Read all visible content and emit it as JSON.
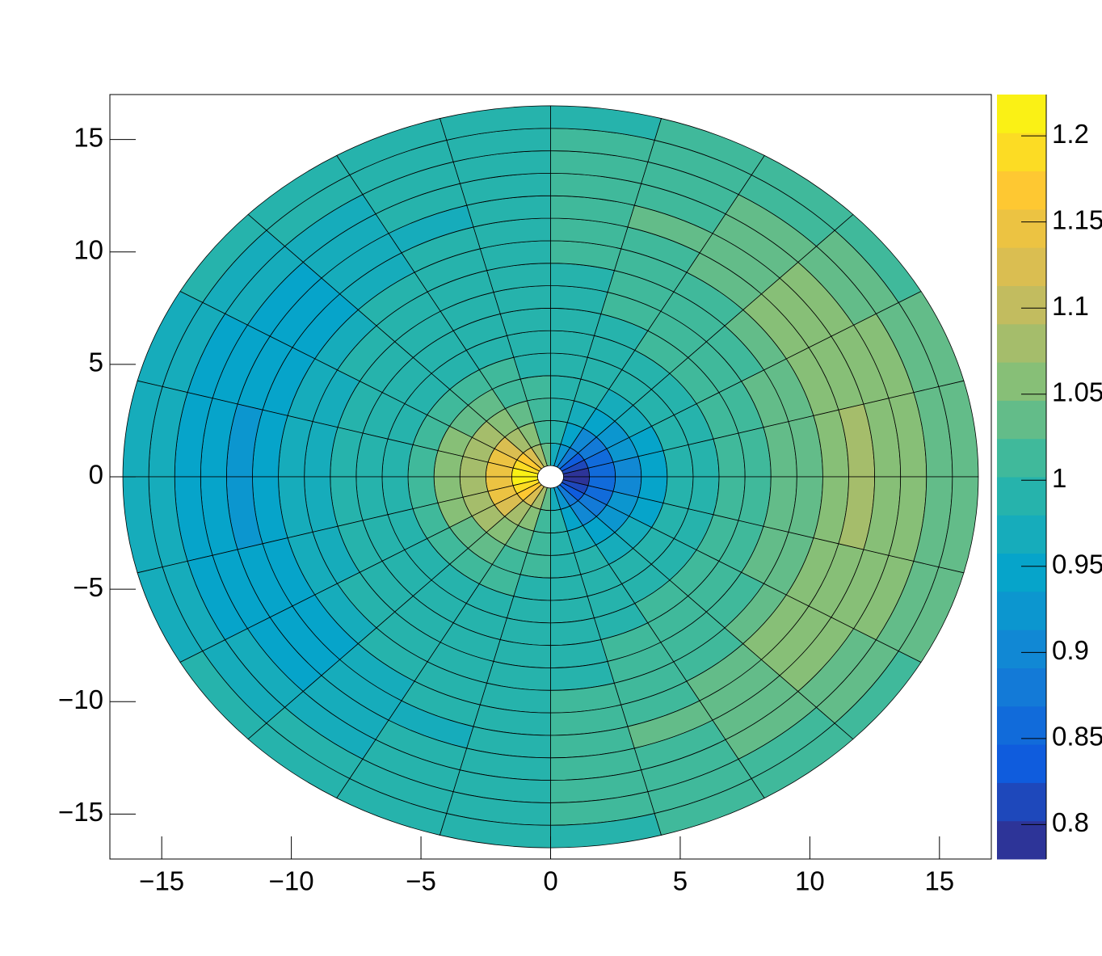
{
  "chart_data": {
    "type": "polar_heatmap",
    "r_edges": [
      0.5,
      1.5,
      2.5,
      3.5,
      4.5,
      5.5,
      6.5,
      7.5,
      8.5,
      9.5,
      10.5,
      11.5,
      12.5,
      13.5,
      14.5,
      15.5,
      16.5
    ],
    "theta_edges": [
      0,
      15,
      30,
      45,
      60,
      75,
      90,
      105,
      120,
      135,
      150,
      165,
      180,
      195,
      210,
      225,
      240,
      255,
      270,
      285,
      300,
      315,
      330,
      345,
      360
    ],
    "values": [
      [
        0.79,
        0.81,
        0.83,
        0.87,
        0.92,
        0.97,
        1.03,
        1.08,
        1.13,
        1.17,
        1.19,
        1.21,
        1.21,
        1.19,
        1.17,
        1.13,
        1.08,
        1.03,
        0.97,
        0.92,
        0.87,
        0.83,
        0.81,
        0.79
      ],
      [
        0.85,
        0.86,
        0.88,
        0.91,
        0.94,
        0.98,
        1.02,
        1.06,
        1.09,
        1.12,
        1.14,
        1.15,
        1.15,
        1.14,
        1.12,
        1.09,
        1.06,
        1.02,
        0.98,
        0.94,
        0.91,
        0.88,
        0.86,
        0.85
      ],
      [
        0.91,
        0.92,
        0.93,
        0.95,
        0.97,
        0.99,
        1.01,
        1.03,
        1.05,
        1.07,
        1.08,
        1.09,
        1.09,
        1.08,
        1.07,
        1.05,
        1.03,
        1.01,
        0.99,
        0.97,
        0.95,
        0.93,
        0.92,
        0.91
      ],
      [
        0.95,
        0.95,
        0.96,
        0.97,
        0.98,
        0.99,
        1.01,
        1.02,
        1.03,
        1.04,
        1.05,
        1.05,
        1.05,
        1.05,
        1.04,
        1.03,
        1.02,
        1.01,
        0.99,
        0.98,
        0.97,
        0.96,
        0.95,
        0.95
      ],
      [
        0.98,
        0.98,
        0.98,
        0.99,
        0.99,
        1.0,
        1.0,
        1.01,
        1.01,
        1.02,
        1.02,
        1.02,
        1.02,
        1.02,
        1.02,
        1.01,
        1.01,
        1.0,
        1.0,
        0.99,
        0.99,
        0.98,
        0.98,
        0.98
      ],
      [
        1.0,
        1.0,
        1.0,
        1.0,
        1.0,
        1.0,
        1.0,
        1.0,
        1.0,
        1.0,
        1.0,
        1.0,
        1.0,
        1.0,
        1.0,
        1.0,
        1.0,
        1.0,
        1.0,
        1.0,
        1.0,
        1.0,
        1.0,
        1.0
      ],
      [
        1.01,
        1.01,
        1.01,
        1.01,
        1.0,
        1.0,
        1.0,
        1.0,
        0.99,
        0.99,
        0.99,
        0.99,
        0.99,
        0.99,
        0.99,
        0.99,
        1.0,
        1.0,
        1.0,
        1.0,
        1.01,
        1.01,
        1.01,
        1.01
      ],
      [
        1.02,
        1.02,
        1.02,
        1.01,
        1.01,
        1.0,
        1.0,
        0.99,
        0.99,
        0.98,
        0.98,
        0.98,
        0.98,
        0.98,
        0.98,
        0.99,
        0.99,
        1.0,
        1.0,
        1.01,
        1.01,
        1.02,
        1.02,
        1.02
      ],
      [
        1.03,
        1.03,
        1.02,
        1.02,
        1.01,
        1.0,
        1.0,
        0.99,
        0.98,
        0.98,
        0.97,
        0.97,
        0.97,
        0.97,
        0.98,
        0.98,
        0.99,
        1.0,
        1.0,
        1.01,
        1.02,
        1.02,
        1.03,
        1.03
      ],
      [
        1.04,
        1.04,
        1.03,
        1.02,
        1.02,
        1.01,
        0.99,
        0.98,
        0.98,
        0.97,
        0.96,
        0.96,
        0.96,
        0.96,
        0.97,
        0.98,
        0.98,
        0.99,
        1.01,
        1.02,
        1.02,
        1.03,
        1.04,
        1.04
      ],
      [
        1.06,
        1.06,
        1.05,
        1.04,
        1.02,
        1.01,
        0.99,
        0.98,
        0.96,
        0.95,
        0.94,
        0.94,
        0.94,
        0.94,
        0.95,
        0.96,
        0.98,
        0.99,
        1.01,
        1.02,
        1.04,
        1.05,
        1.06,
        1.06
      ],
      [
        1.07,
        1.06,
        1.06,
        1.04,
        1.03,
        1.01,
        0.99,
        0.97,
        0.96,
        0.94,
        0.94,
        0.93,
        0.93,
        0.94,
        0.94,
        0.96,
        0.97,
        0.99,
        1.01,
        1.03,
        1.04,
        1.06,
        1.06,
        1.07
      ],
      [
        1.06,
        1.06,
        1.05,
        1.04,
        1.02,
        1.01,
        0.99,
        0.98,
        0.96,
        0.95,
        0.94,
        0.94,
        0.94,
        0.94,
        0.95,
        0.96,
        0.98,
        0.99,
        1.01,
        1.02,
        1.04,
        1.05,
        1.06,
        1.06
      ],
      [
        1.05,
        1.05,
        1.04,
        1.03,
        1.02,
        1.01,
        0.99,
        0.98,
        0.97,
        0.96,
        0.95,
        0.95,
        0.95,
        0.95,
        0.96,
        0.97,
        0.98,
        0.99,
        1.01,
        1.02,
        1.03,
        1.04,
        1.05,
        1.05
      ],
      [
        1.04,
        1.04,
        1.03,
        1.02,
        1.02,
        1.01,
        0.99,
        0.98,
        0.98,
        0.97,
        0.96,
        0.96,
        0.96,
        0.96,
        0.97,
        0.98,
        0.98,
        0.99,
        1.01,
        1.02,
        1.02,
        1.03,
        1.04,
        1.04
      ],
      [
        1.03,
        1.03,
        1.02,
        1.02,
        1.01,
        1.0,
        1.0,
        0.99,
        0.98,
        0.98,
        0.97,
        0.97,
        0.97,
        0.97,
        0.98,
        0.98,
        0.99,
        1.0,
        1.0,
        1.01,
        1.02,
        1.02,
        1.03,
        1.03
      ]
    ],
    "xlim": [
      -17,
      17
    ],
    "ylim": [
      -17,
      17
    ],
    "xticks": [
      {
        "value": -15,
        "label": "−15"
      },
      {
        "value": -10,
        "label": "−10"
      },
      {
        "value": -5,
        "label": "−5"
      },
      0,
      5,
      10,
      15
    ],
    "yticks": [
      {
        "value": -15,
        "label": "−15"
      },
      {
        "value": -10,
        "label": "−10"
      },
      {
        "value": -5,
        "label": "−5"
      },
      0,
      5,
      10,
      15
    ],
    "zlim": [
      0.78,
      1.224
    ],
    "zticks": [
      0.8,
      0.85,
      0.9,
      0.95,
      1,
      1.05,
      1.1,
      1.15,
      1.2
    ],
    "levels": 20,
    "palette": [
      "#352a87",
      "#0f5cdd",
      "#1481d6",
      "#06a4ca",
      "#2eb7a4",
      "#87bf77",
      "#d1bb59",
      "#fec832",
      "#f9fb0e"
    ]
  }
}
